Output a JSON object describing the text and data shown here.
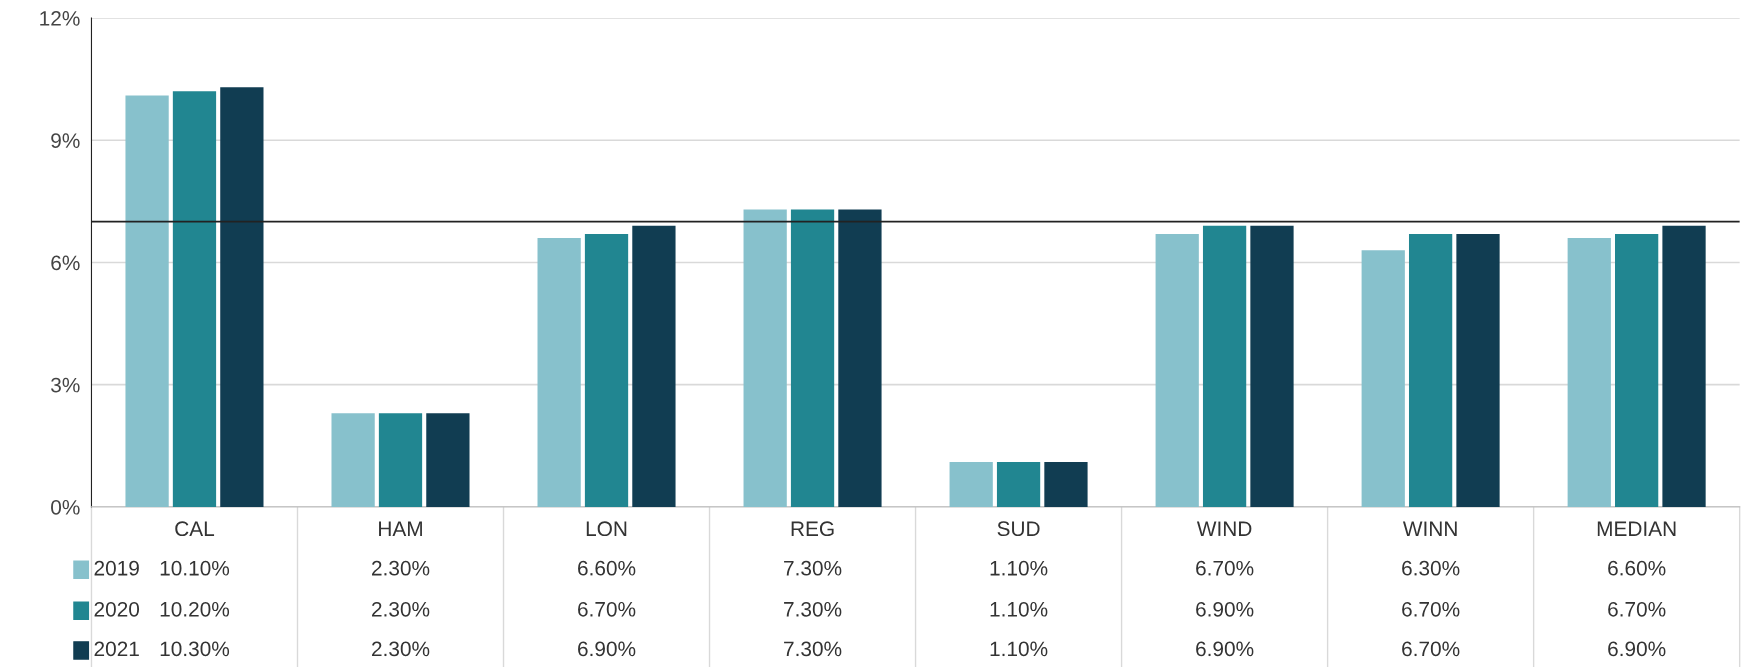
{
  "chart_data": {
    "type": "bar",
    "categories": [
      "CAL",
      "HAM",
      "LON",
      "REG",
      "SUD",
      "WIND",
      "WINN",
      "MEDIAN"
    ],
    "series": [
      {
        "name": "2019",
        "color": "#87c1cc",
        "values": [
          10.1,
          2.3,
          6.6,
          7.3,
          1.1,
          6.7,
          6.3,
          6.6
        ],
        "value_labels": [
          "10.10%",
          "2.30%",
          "6.60%",
          "7.30%",
          "1.10%",
          "6.70%",
          "6.30%",
          "6.60%"
        ]
      },
      {
        "name": "2020",
        "color": "#218691",
        "values": [
          10.2,
          2.3,
          6.7,
          7.3,
          1.1,
          6.9,
          6.7,
          6.7
        ],
        "value_labels": [
          "10.20%",
          "2.30%",
          "6.70%",
          "7.30%",
          "1.10%",
          "6.90%",
          "6.70%",
          "6.70%"
        ]
      },
      {
        "name": "2021",
        "color": "#113d52",
        "values": [
          10.3,
          2.3,
          6.9,
          7.3,
          1.1,
          6.9,
          6.7,
          6.9
        ],
        "value_labels": [
          "10.30%",
          "2.30%",
          "6.90%",
          "7.30%",
          "1.10%",
          "6.90%",
          "6.70%",
          "6.90%"
        ]
      }
    ],
    "ylim": [
      0,
      12
    ],
    "yticks": [
      {
        "value": 0,
        "label": "0%"
      },
      {
        "value": 3,
        "label": "3%"
      },
      {
        "value": 6,
        "label": "6%"
      },
      {
        "value": 9,
        "label": "9%"
      },
      {
        "value": 12,
        "label": "12%"
      }
    ],
    "ref_lines": [
      {
        "axis": "y",
        "value": 7,
        "label": null,
        "color": "#222222"
      }
    ],
    "grid": "y",
    "legend": "bottom left"
  }
}
